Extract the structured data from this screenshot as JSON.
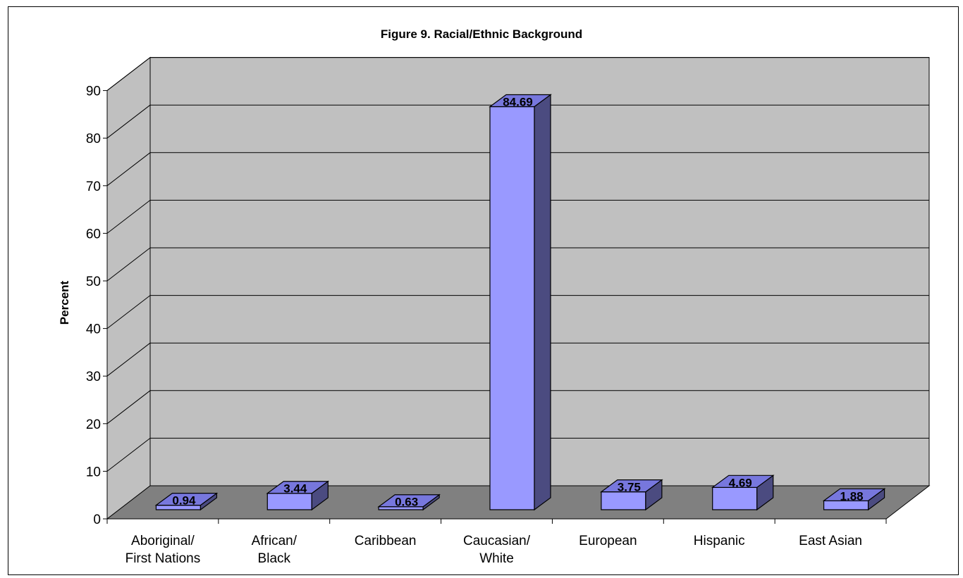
{
  "chart_data": {
    "type": "bar",
    "title": "Figure 9. Racial/Ethnic Background",
    "xlabel": "",
    "ylabel": "Percent",
    "ylim": [
      0,
      90
    ],
    "ytick_step": 10,
    "grid": true,
    "style": "3d-column",
    "categories": [
      [
        "Aboriginal/",
        "First Nations"
      ],
      [
        "African/",
        "Black"
      ],
      [
        "Caribbean"
      ],
      [
        "Caucasian/",
        "White"
      ],
      [
        "European"
      ],
      [
        "Hispanic"
      ],
      [
        "East Asian"
      ]
    ],
    "values": [
      0.94,
      3.44,
      0.63,
      84.69,
      3.75,
      4.69,
      1.88
    ],
    "data_labels": [
      "0.94",
      "3.44",
      "0.63",
      "84.69",
      "3.75",
      "4.69",
      "1.88"
    ],
    "colors": {
      "bar_front": "#9999ff",
      "bar_side": "#4b4b80",
      "bar_top": "#7777dd",
      "back_wall": "#c0c0c0",
      "side_wall": "#c0c0c0",
      "floor": "#808080"
    }
  }
}
